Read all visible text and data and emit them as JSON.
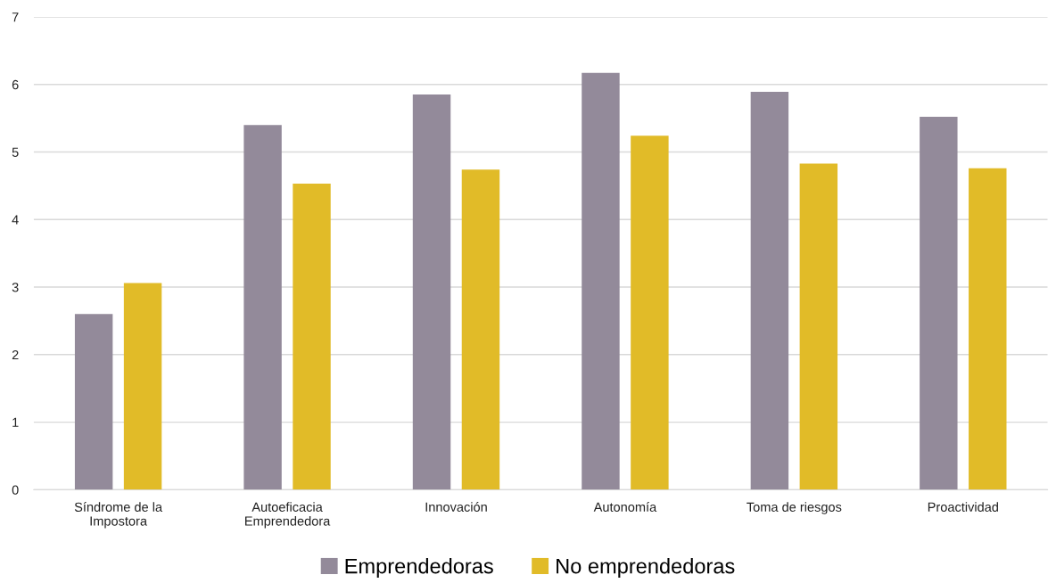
{
  "chart_data": {
    "type": "bar",
    "categories": [
      "Síndrome de la\nImpostora",
      "Autoeficacia\nEmprendedora",
      "Innovación",
      "Autonomía",
      "Toma de riesgos",
      "Proactividad"
    ],
    "series": [
      {
        "name": "Emprendedoras",
        "color": "#938a9a",
        "values": [
          2.6,
          5.4,
          5.85,
          6.17,
          5.89,
          5.52
        ]
      },
      {
        "name": "No emprendedoras",
        "color": "#e1bb28",
        "values": [
          3.06,
          4.53,
          4.74,
          5.24,
          4.83,
          4.76
        ]
      }
    ],
    "ylim": [
      0,
      7
    ],
    "yticks": [
      0,
      1,
      2,
      3,
      4,
      5,
      6,
      7
    ],
    "grid": "y",
    "legend": "bottom"
  }
}
